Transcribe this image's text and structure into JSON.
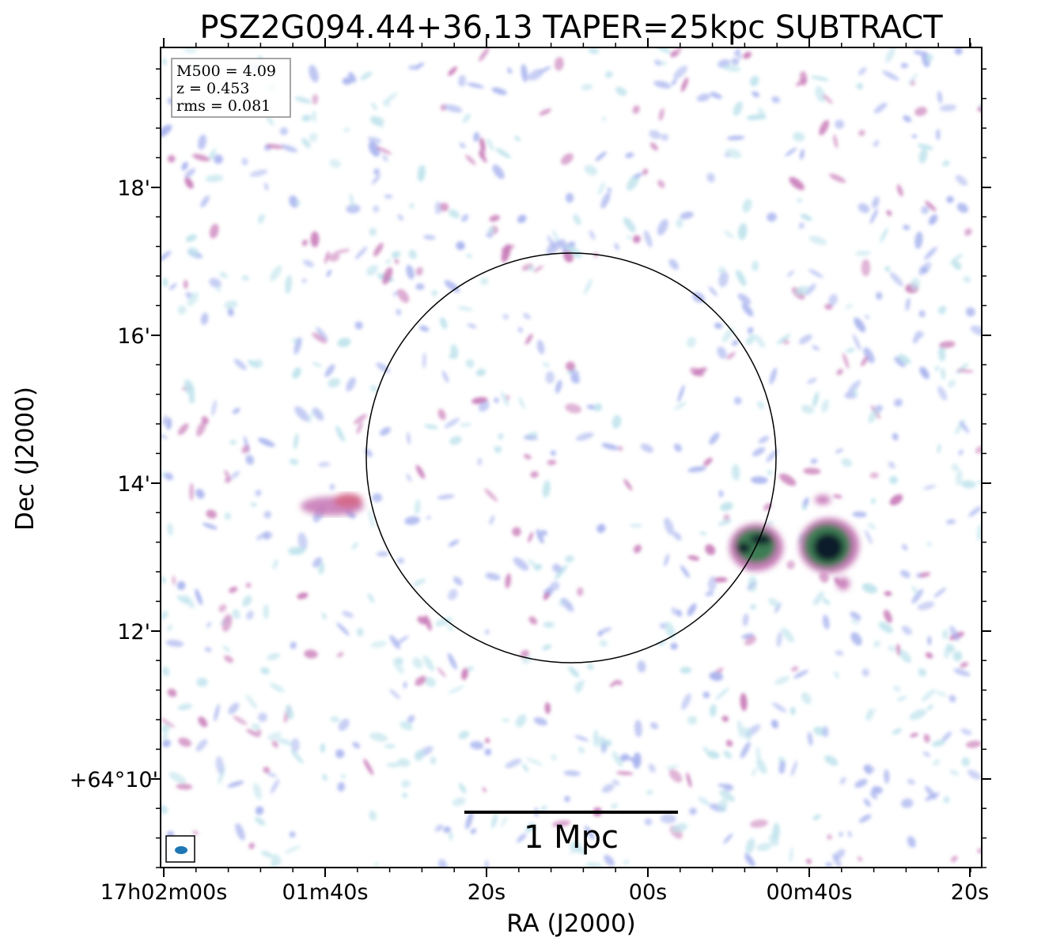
{
  "title": "PSZ2G094.44+36.13 TAPER=25kpc SUBTRACT",
  "info_box": {
    "lines": [
      "M500 = 4.09",
      "z = 0.453",
      "rms = 0.081"
    ]
  },
  "axes": {
    "xlabel": "RA (J2000)",
    "ylabel": "Dec (J2000)",
    "x_ticks": [
      "17h02m00s",
      "01m40s",
      "20s",
      "00s",
      "00m40s",
      "20s"
    ],
    "y_ticks": [
      "18'",
      "16'",
      "14'",
      "12'",
      "+64°10'"
    ]
  },
  "scale_bar": {
    "label": "1 Mpc"
  },
  "colors": {
    "faint_noise": "#bfe3ec",
    "mid_noise": "#a9b4ee",
    "bright_noise": "#c87bb8",
    "source_core": "#0d1a2a",
    "source_mid": "#2f7a4a",
    "beam": "#1f77b4"
  }
}
